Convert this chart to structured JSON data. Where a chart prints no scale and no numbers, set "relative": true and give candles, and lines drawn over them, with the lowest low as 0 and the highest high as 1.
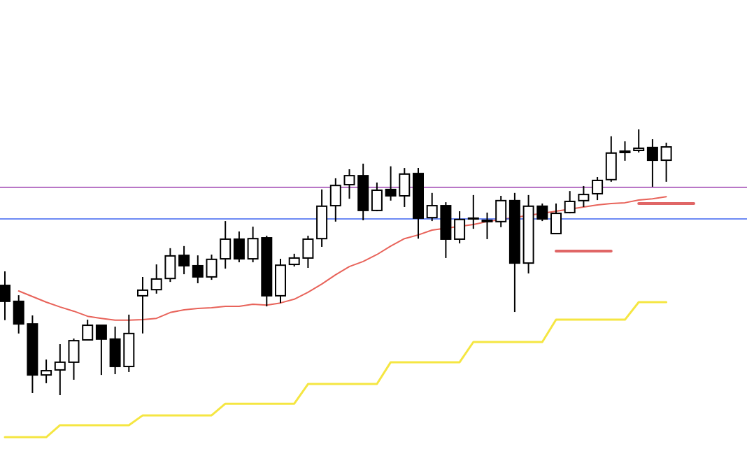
{
  "chart_data": {
    "type": "candlestick",
    "relative": true,
    "categories": [
      null,
      null,
      null,
      null,
      null,
      null,
      null,
      null,
      null,
      null,
      null,
      null,
      null,
      null,
      null,
      null,
      null,
      null,
      null,
      null,
      null,
      null,
      null,
      null,
      null,
      null,
      null,
      null,
      null,
      null,
      null,
      null,
      null,
      null,
      null,
      null,
      null,
      null,
      null,
      null,
      null,
      null,
      null,
      null,
      null,
      null,
      null,
      null,
      null,
      null,
      null,
      null,
      null,
      null
    ],
    "ohlc": [
      [
        0.413,
        0.466,
        0.282,
        0.353
      ],
      [
        0.353,
        0.376,
        0.232,
        0.268
      ],
      [
        0.268,
        0.3,
        0.008,
        0.076
      ],
      [
        0.076,
        0.134,
        0.045,
        0.092
      ],
      [
        0.095,
        0.192,
        0.0,
        0.124
      ],
      [
        0.124,
        0.213,
        0.058,
        0.205
      ],
      [
        0.208,
        0.284,
        0.208,
        0.263
      ],
      [
        0.263,
        0.263,
        0.076,
        0.211
      ],
      [
        0.211,
        0.258,
        0.079,
        0.108
      ],
      [
        0.108,
        0.303,
        0.087,
        0.232
      ],
      [
        0.374,
        0.445,
        0.232,
        0.395
      ],
      [
        0.397,
        0.492,
        0.382,
        0.437
      ],
      [
        0.439,
        0.553,
        0.426,
        0.524
      ],
      [
        0.526,
        0.561,
        0.455,
        0.487
      ],
      [
        0.487,
        0.526,
        0.421,
        0.445
      ],
      [
        0.445,
        0.529,
        0.434,
        0.511
      ],
      [
        0.513,
        0.655,
        0.476,
        0.587
      ],
      [
        0.587,
        0.616,
        0.5,
        0.513
      ],
      [
        0.513,
        0.634,
        0.5,
        0.589
      ],
      [
        0.592,
        0.6,
        0.334,
        0.374
      ],
      [
        0.374,
        0.513,
        0.347,
        0.489
      ],
      [
        0.492,
        0.532,
        0.484,
        0.516
      ],
      [
        0.516,
        0.6,
        0.479,
        0.587
      ],
      [
        0.589,
        0.774,
        0.558,
        0.711
      ],
      [
        0.713,
        0.816,
        0.653,
        0.789
      ],
      [
        0.792,
        0.85,
        0.739,
        0.826
      ],
      [
        0.826,
        0.871,
        0.658,
        0.695
      ],
      [
        0.695,
        0.8,
        0.692,
        0.771
      ],
      [
        0.774,
        0.861,
        0.732,
        0.75
      ],
      [
        0.75,
        0.855,
        0.708,
        0.832
      ],
      [
        0.834,
        0.855,
        0.589,
        0.666
      ],
      [
        0.668,
        0.761,
        0.655,
        0.713
      ],
      [
        0.713,
        0.726,
        0.516,
        0.587
      ],
      [
        0.587,
        0.692,
        0.571,
        0.661
      ],
      [
        0.663,
        0.753,
        0.626,
        0.666
      ],
      [
        0.658,
        0.687,
        0.587,
        0.653
      ],
      [
        0.653,
        0.75,
        0.632,
        0.732
      ],
      [
        0.732,
        0.761,
        0.313,
        0.497
      ],
      [
        0.497,
        0.753,
        0.458,
        0.711
      ],
      [
        0.711,
        0.721,
        0.655,
        0.663
      ],
      [
        0.608,
        0.721,
        0.608,
        0.684
      ],
      [
        0.687,
        0.768,
        0.684,
        0.729
      ],
      [
        0.732,
        0.787,
        0.708,
        0.755
      ],
      [
        0.758,
        0.821,
        0.734,
        0.808
      ],
      [
        0.811,
        0.974,
        0.803,
        0.911
      ],
      [
        0.918,
        0.955,
        0.882,
        0.913
      ],
      [
        0.921,
        1.0,
        0.913,
        0.929
      ],
      [
        0.932,
        0.963,
        0.784,
        0.884
      ],
      [
        0.884,
        0.95,
        0.803,
        0.934
      ],
      null,
      null,
      null,
      null,
      null
    ],
    "series": [
      {
        "type": "line",
        "color": "#e8635a",
        "values": [
          null,
          0.392,
          0.371,
          0.35,
          0.332,
          0.316,
          0.297,
          0.289,
          0.282,
          0.282,
          0.284,
          0.289,
          0.311,
          0.321,
          0.326,
          0.329,
          0.334,
          0.334,
          0.342,
          0.339,
          0.347,
          0.361,
          0.387,
          0.418,
          0.453,
          0.484,
          0.503,
          0.529,
          0.561,
          0.589,
          0.603,
          0.621,
          null,
          null,
          0.642,
          0.653,
          null,
          null,
          null,
          null,
          0.692,
          null,
          0.708,
          0.716,
          0.721,
          0.724,
          0.734,
          0.739,
          0.747,
          null,
          null,
          null,
          null,
          null
        ]
      },
      {
        "type": "line",
        "color": "#f5e642",
        "values": [
          -0.158,
          -0.158,
          -0.158,
          -0.158,
          -0.113,
          -0.113,
          -0.113,
          -0.113,
          -0.113,
          -0.113,
          -0.076,
          -0.076,
          -0.076,
          -0.076,
          -0.076,
          -0.076,
          -0.032,
          -0.032,
          -0.032,
          -0.032,
          -0.032,
          -0.032,
          0.042,
          0.042,
          0.042,
          0.042,
          0.042,
          0.042,
          0.124,
          0.124,
          0.124,
          0.124,
          0.124,
          0.124,
          0.2,
          0.2,
          0.2,
          0.2,
          0.2,
          0.2,
          0.284,
          0.284,
          0.284,
          0.284,
          0.284,
          0.284,
          0.35,
          0.35,
          0.35,
          null,
          null,
          null,
          null,
          null
        ]
      },
      {
        "type": "line",
        "color": "#e06666",
        "values": [
          null,
          null,
          null,
          null,
          null,
          null,
          null,
          null,
          null,
          null,
          null,
          null,
          null,
          null,
          null,
          null,
          null,
          null,
          null,
          null,
          null,
          null,
          null,
          null,
          null,
          null,
          null,
          null,
          null,
          null,
          null,
          null,
          null,
          null,
          null,
          null,
          null,
          null,
          null,
          null,
          0.542,
          0.542,
          0.542,
          0.542,
          0.542,
          null,
          null,
          null,
          null,
          null,
          null,
          null,
          null,
          null
        ]
      },
      {
        "type": "line",
        "color": "#e06666",
        "values": [
          null,
          null,
          null,
          null,
          null,
          null,
          null,
          null,
          null,
          null,
          null,
          null,
          null,
          null,
          null,
          null,
          null,
          null,
          null,
          null,
          null,
          null,
          null,
          null,
          null,
          null,
          null,
          null,
          null,
          null,
          null,
          null,
          null,
          null,
          null,
          null,
          null,
          null,
          null,
          null,
          null,
          null,
          null,
          null,
          null,
          null,
          0.721,
          0.721,
          0.721,
          0.721,
          0.721,
          null,
          null,
          null
        ]
      }
    ],
    "ref_lines": [
      {
        "axis": "y",
        "value": 0.782,
        "color": "#9c3fb0"
      },
      {
        "axis": "y",
        "value": 0.663,
        "color": "#3d63f0"
      }
    ]
  }
}
